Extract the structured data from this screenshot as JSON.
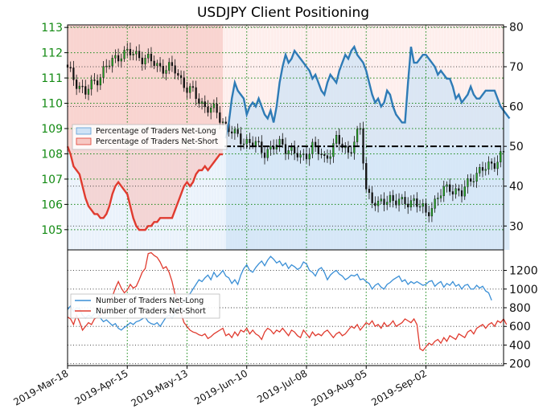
{
  "chart_data": [
    {
      "type": "candlestick+line",
      "title": "USDJPY Client Positioning",
      "left_axis": {
        "label": "",
        "range": [
          104.2,
          113.1
        ],
        "ticks": [
          "105",
          "106",
          "107",
          "108",
          "109",
          "110",
          "111",
          "112",
          "113"
        ]
      },
      "right_axis": {
        "label": "",
        "range": [
          24,
          80.5
        ],
        "ticks": [
          "30",
          "40",
          "50",
          "60",
          "70",
          "80"
        ]
      },
      "x_tick_labels": [
        "2019-Mar-18",
        "2019-Apr-15",
        "2019-May-13",
        "2019-Jun-10",
        "2019-Jul-08",
        "2019-Aug-05",
        "2019-Sep-02"
      ],
      "reference_line": 50,
      "legend": {
        "position": "center-left",
        "entries": [
          "Percentage of Traders Net-Long",
          "Percentage of Traders Net-Short"
        ]
      },
      "series": [
        {
          "name": "Percentage of Traders Net-Long",
          "color": "#2e7bb6",
          "values": [
            null,
            null,
            null,
            null,
            null,
            null,
            null,
            null,
            null,
            null,
            null,
            null,
            null,
            null,
            null,
            null,
            null,
            null,
            null,
            null,
            null,
            null,
            null,
            null,
            null,
            null,
            null,
            null,
            null,
            null,
            null,
            null,
            null,
            null,
            null,
            null,
            null,
            null,
            null,
            null,
            null,
            null,
            null,
            null,
            null,
            null,
            null,
            null,
            null,
            null,
            null,
            null,
            null,
            52,
            56,
            62,
            66,
            64,
            63,
            62,
            58,
            60,
            61,
            60,
            62,
            60,
            58,
            57,
            59,
            56,
            60,
            66,
            70,
            73,
            71,
            72,
            74,
            73,
            72,
            71,
            70,
            69,
            67,
            68,
            66,
            64,
            63,
            66,
            68,
            67,
            66,
            69,
            71,
            73,
            72,
            74,
            75,
            73,
            72,
            71,
            69,
            66,
            63,
            61,
            62,
            60,
            61,
            64,
            63,
            60,
            58,
            57,
            56,
            56,
            66,
            75,
            71,
            71,
            72,
            73,
            73,
            72,
            71,
            70,
            68,
            69,
            68,
            67,
            67,
            65,
            62,
            63,
            61,
            62,
            63,
            65,
            63,
            62,
            62,
            63,
            64,
            64,
            64,
            64,
            62,
            60,
            59,
            58,
            57
          ]
        },
        {
          "name": "Percentage of Traders Net-Short",
          "color": "#e03b2f",
          "values": [
            50,
            48,
            45,
            44,
            43,
            40,
            37,
            35,
            34,
            33,
            33,
            32,
            32,
            33,
            35,
            38,
            40,
            41,
            40,
            39,
            38,
            35,
            32,
            30,
            29,
            29,
            29,
            30,
            30,
            31,
            31,
            32,
            32,
            32,
            32,
            32,
            34,
            36,
            38,
            40,
            41,
            40,
            41,
            43,
            44,
            44,
            45,
            44,
            45,
            46,
            47,
            48,
            48,
            null
          ]
        }
      ]
    },
    {
      "type": "line",
      "left_axis": {
        "label": "",
        "ticks": []
      },
      "right_axis": {
        "label": "",
        "range": [
          180,
          1420
        ],
        "ticks": [
          "200",
          "400",
          "600",
          "800",
          "1000",
          "1200"
        ]
      },
      "x_tick_labels": [
        "2019-Mar-18",
        "2019-Apr-15",
        "2019-May-13",
        "2019-Jun-10",
        "2019-Jul-08",
        "2019-Aug-05",
        "2019-Sep-02"
      ],
      "legend": {
        "position": "center-left",
        "entries": [
          "Number of Traders Net-Long",
          "Number of Traders Net-Short"
        ]
      },
      "series": [
        {
          "name": "Number of Traders Net-Long",
          "color": "#3a8fd6",
          "values": [
            780,
            820,
            760,
            800,
            790,
            720,
            690,
            720,
            700,
            740,
            760,
            690,
            650,
            670,
            640,
            610,
            630,
            580,
            560,
            590,
            610,
            640,
            620,
            650,
            660,
            680,
            700,
            650,
            630,
            620,
            640,
            600,
            650,
            700,
            720,
            690,
            740,
            800,
            820,
            860,
            900,
            950,
            1000,
            1050,
            1100,
            1080,
            1120,
            1150,
            1100,
            1180,
            1130,
            1160,
            1200,
            1140,
            1120,
            1060,
            1100,
            1050,
            1150,
            1220,
            1260,
            1200,
            1180,
            1230,
            1270,
            1300,
            1250,
            1310,
            1350,
            1320,
            1280,
            1300,
            1250,
            1280,
            1220,
            1260,
            1240,
            1210,
            1230,
            1290,
            1270,
            1200,
            1180,
            1140,
            1210,
            1230,
            1180,
            1100,
            1150,
            1180,
            1200,
            1160,
            1140,
            1100,
            1120,
            1150,
            1140,
            1160,
            1100,
            1110,
            1080,
            1060,
            1000,
            1040,
            1060,
            1020,
            1000,
            1050,
            1070,
            1100,
            1120,
            1140,
            1080,
            1100,
            1050,
            1080,
            1060,
            1080,
            1060,
            1040,
            1050,
            1080,
            1090,
            1030,
            1060,
            1080,
            1020,
            1060,
            1040,
            1080,
            1030,
            1050,
            1000,
            1040,
            1050,
            1000,
            1000,
            1040,
            1010,
            1030,
            980,
            960,
            880
          ]
        },
        {
          "name": "Number of Traders Net-Short",
          "color": "#e03b2f",
          "values": [
            700,
            680,
            620,
            720,
            650,
            560,
            600,
            640,
            620,
            680,
            700,
            720,
            760,
            790,
            860,
            920,
            1010,
            1080,
            1010,
            960,
            990,
            1050,
            1010,
            1030,
            1100,
            1180,
            1220,
            1380,
            1390,
            1360,
            1340,
            1290,
            1220,
            1240,
            1180,
            1080,
            940,
            880,
            740,
            640,
            600,
            560,
            540,
            530,
            510,
            500,
            520,
            470,
            490,
            520,
            540,
            560,
            580,
            500,
            520,
            480,
            540,
            500,
            560,
            540,
            580,
            520,
            560,
            520,
            500,
            460,
            540,
            580,
            560,
            520,
            560,
            540,
            580,
            540,
            500,
            560,
            540,
            500,
            480,
            560,
            520,
            480,
            540,
            500,
            520,
            500,
            540,
            560,
            520,
            480,
            520,
            540,
            500,
            520,
            560,
            600,
            580,
            620,
            560,
            600,
            640,
            620,
            660,
            600,
            620,
            580,
            640,
            600,
            620,
            660,
            600,
            620,
            640,
            680,
            660,
            640,
            680,
            620,
            360,
            340,
            380,
            420,
            400,
            440,
            460,
            420,
            480,
            440,
            500,
            480,
            460,
            520,
            500,
            480,
            540,
            560,
            520,
            580,
            600,
            620,
            580,
            620,
            640,
            600,
            660,
            640,
            680,
            620
          ]
        }
      ]
    }
  ]
}
